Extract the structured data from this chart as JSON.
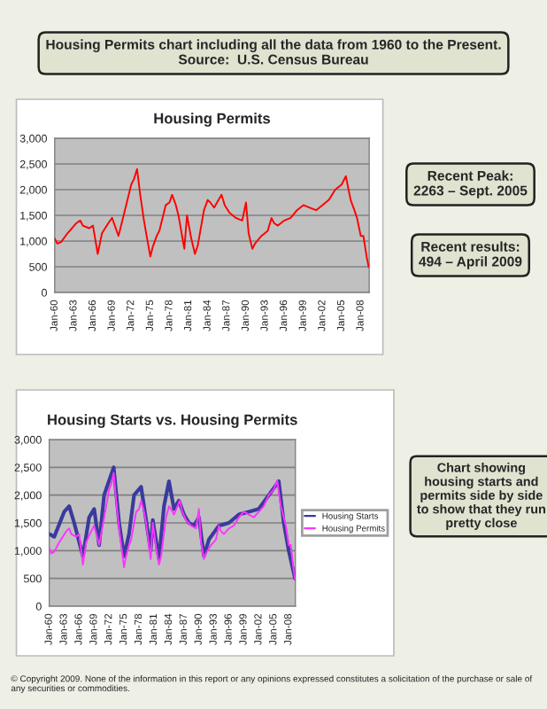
{
  "chart_data": [
    {
      "type": "line",
      "title": "Housing Permits",
      "annotations": [
        "Housing Permits chart including all the data from 1960 to the Present.\nSource:  U.S. Census Bureau",
        "Recent Peak:\n2263 – Sept. 2005",
        "Recent results:\n494 – April 2009"
      ],
      "xlim": [
        "1960-01",
        "2009-05"
      ],
      "ylim": [
        0,
        3000
      ],
      "yticks": [
        {
          "value": 0,
          "label": "0"
        },
        {
          "value": 500,
          "label": "500"
        },
        {
          "value": 1000,
          "label": "1,000"
        },
        {
          "value": 1500,
          "label": "1,500"
        },
        {
          "value": 2000,
          "label": "2,000"
        },
        {
          "value": 2500,
          "label": "2,500"
        },
        {
          "value": 3000,
          "label": "3,000"
        }
      ],
      "xticks": [
        {
          "value": "1960-01",
          "label": "Jan-60"
        },
        {
          "value": "1963-01",
          "label": "Jan-63"
        },
        {
          "value": "1966-01",
          "label": "Jan-66"
        },
        {
          "value": "1969-01",
          "label": "Jan-69"
        },
        {
          "value": "1972-01",
          "label": "Jan-72"
        },
        {
          "value": "1975-01",
          "label": "Jan-75"
        },
        {
          "value": "1978-01",
          "label": "Jan-78"
        },
        {
          "value": "1981-01",
          "label": "Jan-81"
        },
        {
          "value": "1984-01",
          "label": "Jan-84"
        },
        {
          "value": "1987-01",
          "label": "Jan-87"
        },
        {
          "value": "1990-01",
          "label": "Jan-90"
        },
        {
          "value": "1993-01",
          "label": "Jan-93"
        },
        {
          "value": "1996-01",
          "label": "Jan-96"
        },
        {
          "value": "1999-01",
          "label": "Jan-99"
        },
        {
          "value": "2002-01",
          "label": "Jan-02"
        },
        {
          "value": "2005-01",
          "label": "Jan-05"
        },
        {
          "value": "2008-01",
          "label": "Jan-08"
        }
      ],
      "grid": "y",
      "legend": false,
      "line_style": "solid",
      "series": [
        {
          "color": "#ff0000",
          "x": [
            "1960-01",
            "1960-06",
            "1961-01",
            "1962-01",
            "1963-06",
            "1964-01",
            "1964-06",
            "1965-06",
            "1966-01",
            "1966-10",
            "1967-06",
            "1968-06",
            "1969-01",
            "1970-01",
            "1970-06",
            "1971-06",
            "1972-01",
            "1972-06",
            "1972-12",
            "1973-06",
            "1974-01",
            "1974-06",
            "1975-01",
            "1975-06",
            "1976-01",
            "1976-06",
            "1977-06",
            "1978-01",
            "1978-06",
            "1979-01",
            "1979-06",
            "1980-05",
            "1980-10",
            "1981-06",
            "1982-01",
            "1982-06",
            "1983-06",
            "1984-01",
            "1984-06",
            "1985-01",
            "1986-03",
            "1986-09",
            "1987-06",
            "1988-06",
            "1989-06",
            "1990-01",
            "1990-06",
            "1991-01",
            "1991-06",
            "1992-06",
            "1993-06",
            "1994-01",
            "1994-06",
            "1995-01",
            "1996-01",
            "1997-01",
            "1998-01",
            "1999-01",
            "2000-01",
            "2001-01",
            "2002-01",
            "2003-01",
            "2004-01",
            "2005-01",
            "2005-09",
            "2006-06",
            "2007-01",
            "2007-06",
            "2008-01",
            "2008-06",
            "2008-12",
            "2009-04"
          ],
          "values": [
            1050,
            950,
            980,
            1150,
            1350,
            1400,
            1300,
            1250,
            1300,
            750,
            1150,
            1350,
            1450,
            1100,
            1300,
            1800,
            2100,
            2200,
            2400,
            1900,
            1400,
            1100,
            700,
            900,
            1100,
            1200,
            1700,
            1750,
            1900,
            1700,
            1500,
            850,
            1500,
            1050,
            750,
            900,
            1600,
            1800,
            1750,
            1650,
            1900,
            1700,
            1550,
            1450,
            1400,
            1750,
            1150,
            850,
            950,
            1100,
            1200,
            1450,
            1350,
            1300,
            1400,
            1450,
            1600,
            1700,
            1650,
            1600,
            1700,
            1800,
            2000,
            2100,
            2263,
            1800,
            1600,
            1450,
            1100,
            1100,
            700,
            494
          ]
        }
      ]
    },
    {
      "type": "line",
      "title": "Housing Starts vs. Housing Permits",
      "annotations": [
        "Chart showing housing starts and permits side by side to show that they run pretty close",
        "© Copyright 2009. None of the information in this report or any opinions expressed constitutes a solicitation of the purchase or sale of any securities or commodities."
      ],
      "xlim": [
        "1960-01",
        "2009-05"
      ],
      "ylim": [
        0,
        3000
      ],
      "yticks": [
        {
          "value": 0,
          "label": "0"
        },
        {
          "value": 500,
          "label": "500"
        },
        {
          "value": 1000,
          "label": "1,000"
        },
        {
          "value": 1500,
          "label": "1,500"
        },
        {
          "value": 2000,
          "label": "2,000"
        },
        {
          "value": 2500,
          "label": "2,500"
        },
        {
          "value": 3000,
          "label": "3,000"
        }
      ],
      "xticks": [
        {
          "value": "1960-01",
          "label": "Jan-60"
        },
        {
          "value": "1963-01",
          "label": "Jan-63"
        },
        {
          "value": "1966-01",
          "label": "Jan-66"
        },
        {
          "value": "1969-01",
          "label": "Jan-69"
        },
        {
          "value": "1972-01",
          "label": "Jan-72"
        },
        {
          "value": "1975-01",
          "label": "Jan-75"
        },
        {
          "value": "1978-01",
          "label": "Jan-78"
        },
        {
          "value": "1981-01",
          "label": "Jan-81"
        },
        {
          "value": "1984-01",
          "label": "Jan-84"
        },
        {
          "value": "1987-01",
          "label": "Jan-87"
        },
        {
          "value": "1990-01",
          "label": "Jan-90"
        },
        {
          "value": "1993-01",
          "label": "Jan-93"
        },
        {
          "value": "1996-01",
          "label": "Jan-96"
        },
        {
          "value": "1999-01",
          "label": "Jan-99"
        },
        {
          "value": "2002-01",
          "label": "Jan-02"
        },
        {
          "value": "2005-01",
          "label": "Jan-05"
        },
        {
          "value": "2008-01",
          "label": "Jan-08"
        }
      ],
      "grid": "y",
      "legend": "right",
      "line_style": "solid",
      "series": [
        {
          "name": "Housing Starts",
          "color": "#3a3a9e",
          "x": [
            "1960-01",
            "1961-01",
            "1963-01",
            "1964-01",
            "1965-01",
            "1966-10",
            "1968-01",
            "1969-01",
            "1970-01",
            "1971-01",
            "1972-12",
            "1974-01",
            "1975-01",
            "1976-01",
            "1977-01",
            "1978-06",
            "1979-01",
            "1980-05",
            "1980-10",
            "1982-01",
            "1983-01",
            "1984-01",
            "1985-01",
            "1986-01",
            "1987-01",
            "1988-01",
            "1989-01",
            "1990-01",
            "1991-01",
            "1992-01",
            "1994-01",
            "1996-01",
            "1998-01",
            "2000-01",
            "2002-01",
            "2004-01",
            "2006-01",
            "2007-01",
            "2008-01",
            "2009-04"
          ],
          "values": [
            1300,
            1250,
            1700,
            1800,
            1500,
            900,
            1600,
            1750,
            1100,
            2000,
            2500,
            1500,
            900,
            1300,
            2000,
            2150,
            1800,
            1000,
            1550,
            850,
            1800,
            2250,
            1750,
            1900,
            1650,
            1500,
            1450,
            1600,
            900,
            1200,
            1450,
            1500,
            1650,
            1700,
            1750,
            2000,
            2250,
            1500,
            1000,
            500
          ]
        },
        {
          "name": "Housing Permits",
          "color": "#ff33ff",
          "x": [
            "1960-01",
            "1960-06",
            "1961-01",
            "1962-01",
            "1963-06",
            "1964-01",
            "1964-06",
            "1965-06",
            "1966-01",
            "1966-10",
            "1967-06",
            "1968-06",
            "1969-01",
            "1970-01",
            "1970-06",
            "1971-06",
            "1972-01",
            "1972-06",
            "1972-12",
            "1973-06",
            "1974-01",
            "1974-06",
            "1975-01",
            "1975-06",
            "1976-01",
            "1976-06",
            "1977-06",
            "1978-01",
            "1978-06",
            "1979-01",
            "1979-06",
            "1980-05",
            "1980-10",
            "1981-06",
            "1982-01",
            "1982-06",
            "1983-06",
            "1984-01",
            "1984-06",
            "1985-01",
            "1986-03",
            "1986-09",
            "1987-06",
            "1988-06",
            "1989-06",
            "1990-01",
            "1990-06",
            "1991-01",
            "1991-06",
            "1992-06",
            "1993-06",
            "1994-01",
            "1994-06",
            "1995-01",
            "1996-01",
            "1997-01",
            "1998-01",
            "1999-01",
            "2000-01",
            "2001-01",
            "2002-01",
            "2003-01",
            "2004-01",
            "2005-01",
            "2005-09",
            "2006-06",
            "2007-01",
            "2007-06",
            "2008-01",
            "2008-06",
            "2008-12",
            "2009-04"
          ],
          "values": [
            1050,
            950,
            980,
            1150,
            1350,
            1400,
            1300,
            1250,
            1300,
            750,
            1150,
            1350,
            1450,
            1100,
            1300,
            1800,
            2100,
            2200,
            2400,
            1900,
            1400,
            1100,
            700,
            900,
            1100,
            1200,
            1700,
            1750,
            1900,
            1700,
            1500,
            850,
            1500,
            1050,
            750,
            900,
            1600,
            1800,
            1750,
            1650,
            1900,
            1700,
            1550,
            1450,
            1400,
            1750,
            1150,
            850,
            950,
            1100,
            1200,
            1450,
            1350,
            1300,
            1400,
            1450,
            1600,
            1700,
            1650,
            1600,
            1700,
            1800,
            2000,
            2100,
            2263,
            1800,
            1600,
            1450,
            1100,
            1100,
            700,
            494
          ]
        }
      ]
    }
  ]
}
